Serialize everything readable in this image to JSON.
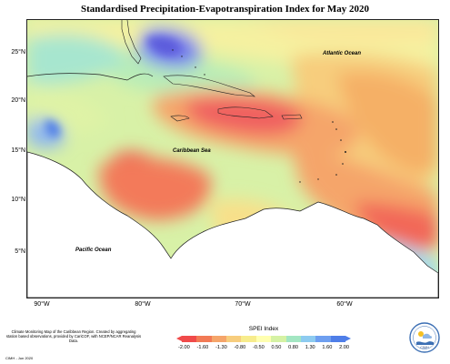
{
  "title": "Standardised Precipitation-Evapotranspiration Index for May 2020",
  "map": {
    "latitude_labels": [
      "25°N",
      "20°N",
      "15°N",
      "10°N",
      "5°N"
    ],
    "longitude_labels": [
      "90°W",
      "80°W",
      "70°W",
      "60°W"
    ],
    "place_labels": {
      "atlantic": "Atlantic Ocean",
      "caribbean": "Caribbean Sea",
      "pacific": "Pacific Ocean"
    }
  },
  "legend": {
    "title": "SPEI Index",
    "ticks": [
      "-2.00",
      "-1.60",
      "-1.30",
      "-0.80",
      "-0.50",
      "0.50",
      "0.80",
      "1.30",
      "1.60",
      "2.00"
    ],
    "colors": [
      "#f04a4a",
      "#f27a55",
      "#f5a56a",
      "#f7cd7d",
      "#f7ec8c",
      "#ffffb0",
      "#d5f2a4",
      "#a3e6c2",
      "#8dcbf0",
      "#6e9ff0",
      "#4f7ee8"
    ]
  },
  "footnote": {
    "description": "Climate Monitoring Map of the Caribbean Region. Created by aggregating station based observations, provided by CariCOF, with NCEP/NCAR Reanalysis Data.",
    "stamp": "CIMH - Jun 2020"
  },
  "logo": {
    "text": "CIMH"
  }
}
